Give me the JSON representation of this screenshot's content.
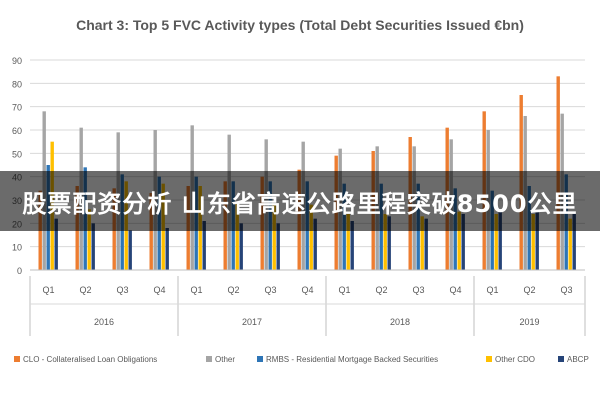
{
  "overlay": {
    "text": "股票配资分析 山东省高速公路里程突破8500公里"
  },
  "chart_data": {
    "type": "bar",
    "title": "Chart 3: Top 5 FVC Activity types (Total Debt Securities Issued €bn)",
    "xlabel": "",
    "ylabel": "",
    "ylim": [
      0,
      90
    ],
    "yticks": [
      0,
      10,
      20,
      30,
      40,
      50,
      60,
      70,
      80,
      90
    ],
    "grid": true,
    "legend_position": "bottom",
    "categories": [
      "Q1",
      "Q2",
      "Q3",
      "Q4",
      "Q1",
      "Q2",
      "Q3",
      "Q4",
      "Q1",
      "Q2",
      "Q3",
      "Q4",
      "Q1",
      "Q2",
      "Q3"
    ],
    "groups": [
      {
        "label": "2016",
        "count": 4
      },
      {
        "label": "2017",
        "count": 4
      },
      {
        "label": "2018",
        "count": 4
      },
      {
        "label": "2019",
        "count": 3
      }
    ],
    "series": [
      {
        "name": "CLO - Collateralised Loan Obligations",
        "color": "#ED7D31",
        "values": [
          34,
          36,
          35,
          33,
          36,
          38,
          40,
          43,
          49,
          51,
          57,
          61,
          68,
          75,
          83
        ]
      },
      {
        "name": "Other",
        "color": "#A5A5A5",
        "values": [
          68,
          61,
          59,
          60,
          62,
          58,
          56,
          55,
          52,
          53,
          53,
          56,
          60,
          66,
          67
        ]
      },
      {
        "name": "RMBS - Residential Mortgage Backed Securities",
        "color": "#2E75B6",
        "values": [
          45,
          44,
          41,
          40,
          40,
          38,
          38,
          38,
          37,
          37,
          37,
          35,
          34,
          36,
          41
        ]
      },
      {
        "name": "Other CDO",
        "color": "#FFC000",
        "values": [
          55,
          26,
          38,
          37,
          36,
          29,
          28,
          28,
          24,
          24,
          23,
          25,
          24,
          24,
          22
        ]
      },
      {
        "name": "ABCP",
        "color": "#264478",
        "values": [
          22,
          20,
          17,
          18,
          21,
          20,
          20,
          22,
          21,
          23,
          22,
          24,
          25,
          25,
          24
        ]
      }
    ]
  }
}
